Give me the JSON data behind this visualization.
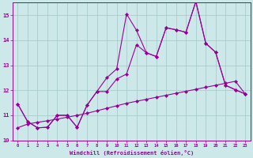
{
  "background_color": "#cce8e8",
  "grid_color": "#aacccc",
  "line_color": "#990099",
  "xlabel": "Windchill (Refroidissement éolien,°C)",
  "xlim": [
    -0.5,
    23.5
  ],
  "ylim": [
    10,
    15.5
  ],
  "yticks": [
    10,
    11,
    12,
    13,
    14,
    15
  ],
  "xticks": [
    0,
    1,
    2,
    3,
    4,
    5,
    6,
    7,
    8,
    9,
    10,
    11,
    12,
    13,
    14,
    15,
    16,
    17,
    18,
    19,
    20,
    21,
    22,
    23
  ],
  "line1_y": [
    10.5,
    10.65,
    10.72,
    10.78,
    10.85,
    10.92,
    11.0,
    11.08,
    11.18,
    11.28,
    11.38,
    11.48,
    11.56,
    11.64,
    11.72,
    11.8,
    11.88,
    11.96,
    12.04,
    12.12,
    12.2,
    12.28,
    12.36,
    11.85
  ],
  "line2_y": [
    11.45,
    10.75,
    10.5,
    10.52,
    11.0,
    11.0,
    10.52,
    11.4,
    11.95,
    12.5,
    12.85,
    15.05,
    14.4,
    13.5,
    13.35,
    14.5,
    14.42,
    14.32,
    15.55,
    13.88,
    13.52,
    12.2,
    12.02,
    11.85
  ],
  "line3_y": [
    11.45,
    10.75,
    10.5,
    10.52,
    11.0,
    11.0,
    10.52,
    11.4,
    11.95,
    11.95,
    12.45,
    12.65,
    13.82,
    13.5,
    13.35,
    14.5,
    14.42,
    14.32,
    15.55,
    13.88,
    13.52,
    12.2,
    12.02,
    11.85
  ]
}
